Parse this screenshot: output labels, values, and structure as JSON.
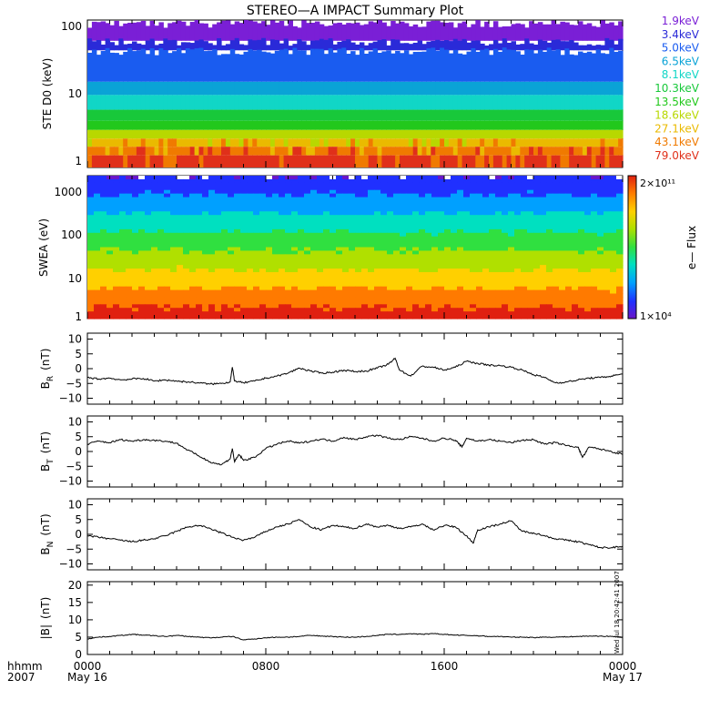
{
  "title": "STEREO—A IMPACT Summary Plot",
  "stamp": "Wed Jul 18 20:42:41 2007",
  "colors": {
    "ste_channels": [
      "#7a1fd6",
      "#2a2ad8",
      "#1a5cf0",
      "#0aa3d6",
      "#11d6c6",
      "#18c83a",
      "#22c81c",
      "#b8d800",
      "#eaba00",
      "#f07a00",
      "#e0301a"
    ],
    "swea_scale": [
      "#6a16c8",
      "#2030ff",
      "#00a0ff",
      "#00e0c0",
      "#30e040",
      "#b0e000",
      "#ffd000",
      "#ff7a00",
      "#e02010"
    ]
  },
  "x_axis": {
    "hhmm_label": "hhmm",
    "year_label": "2007",
    "ticks": [
      "0000",
      "0800",
      "1600",
      "0000"
    ],
    "dates": [
      "May 16",
      "",
      "",
      "May 17"
    ],
    "range_hours": [
      0,
      24
    ]
  },
  "chart_data": [
    {
      "type": "heatmap",
      "panel": "ste",
      "ylabel": "STE D0 (keV)",
      "ylog": true,
      "ylim": [
        0.8,
        110
      ],
      "yticks": [
        "1",
        "10",
        "100"
      ],
      "channels": [
        "1.9keV",
        "3.4keV",
        "5.0keV",
        "6.5keV",
        "8.1keV",
        "10.3keV",
        "13.5keV",
        "18.6keV",
        "27.1keV",
        "43.1keV",
        "79.0keV"
      ]
    },
    {
      "type": "heatmap",
      "panel": "swea",
      "ylabel": "SWEA (eV)",
      "ylog": true,
      "ylim": [
        0.8,
        2200
      ],
      "yticks": [
        "1",
        "10",
        "100",
        "1000"
      ],
      "colorbar": {
        "label": "e— Flux",
        "max": "2×10¹¹",
        "min": "1×10⁴"
      }
    },
    {
      "type": "line",
      "panel": "br",
      "ylabel_main": "B",
      "ylabel_sub": "R",
      "ylabel_unit": "(nT)",
      "ylim": [
        -12,
        12
      ],
      "yticks": [
        "10",
        "5",
        "0",
        "−5",
        "−10"
      ],
      "x": [
        0,
        0.5,
        1,
        1.5,
        2,
        2.5,
        3,
        3.5,
        4,
        4.5,
        5,
        5.5,
        6,
        6.4,
        6.5,
        6.6,
        7,
        7.5,
        8,
        8.5,
        9,
        9.5,
        10,
        10.5,
        11,
        11.5,
        12,
        12.5,
        13,
        13.5,
        13.8,
        14,
        14.5,
        15,
        15.5,
        16,
        16.5,
        17,
        17.5,
        18,
        18.5,
        19,
        19.5,
        20,
        20.5,
        21,
        21.5,
        22,
        22.5,
        23,
        23.5,
        24
      ],
      "y": [
        -3,
        -3.5,
        -3.2,
        -3.8,
        -3.5,
        -3.3,
        -4.2,
        -3.8,
        -4.2,
        -4.5,
        -4.8,
        -5.2,
        -5.0,
        -4.5,
        0.5,
        -4.2,
        -4.8,
        -4.2,
        -3.2,
        -2.5,
        -1.5,
        0.2,
        -0.8,
        -1.5,
        -1.2,
        -0.5,
        -1.0,
        -0.8,
        0.2,
        1.5,
        3.5,
        -0.5,
        -2.5,
        0.8,
        0.5,
        -0.5,
        0.5,
        2.5,
        1.8,
        1.2,
        1.0,
        0.5,
        -0.5,
        -2.0,
        -3.0,
        -4.8,
        -4.5,
        -3.8,
        -3.2,
        -3.0,
        -2.5,
        -1.8
      ]
    },
    {
      "type": "line",
      "panel": "bt",
      "ylabel_main": "B",
      "ylabel_sub": "T",
      "ylabel_unit": "(nT)",
      "ylim": [
        -12,
        12
      ],
      "yticks": [
        "10",
        "5",
        "0",
        "−5",
        "−10"
      ],
      "x": [
        0,
        0.5,
        1,
        1.5,
        2,
        2.5,
        3,
        3.5,
        4,
        4.5,
        5,
        5.5,
        6,
        6.4,
        6.5,
        6.6,
        6.8,
        7,
        7.5,
        8,
        8.5,
        9,
        9.5,
        10,
        10.5,
        11,
        11.5,
        12,
        12.5,
        13,
        13.5,
        14,
        14.5,
        15,
        15.5,
        16,
        16.5,
        16.8,
        17,
        17.5,
        18,
        18.5,
        19,
        19.5,
        20,
        20.5,
        21,
        21.5,
        22,
        22.2,
        22.5,
        23,
        23.5,
        24
      ],
      "y": [
        2.5,
        3.5,
        3.0,
        4.0,
        3.5,
        4.0,
        3.8,
        3.5,
        2.8,
        0.5,
        -1.5,
        -3.5,
        -4.5,
        -2.5,
        1.0,
        -3.5,
        -1.0,
        -3.0,
        -2.0,
        1.0,
        2.5,
        3.5,
        2.8,
        3.5,
        4.2,
        3.5,
        4.8,
        4.0,
        5.0,
        5.5,
        4.5,
        4.0,
        5.0,
        4.5,
        3.5,
        4.5,
        3.8,
        1.5,
        4.5,
        3.5,
        4.0,
        3.5,
        3.0,
        3.8,
        4.0,
        2.5,
        3.0,
        2.0,
        1.5,
        -2.0,
        1.5,
        0.8,
        0.0,
        -1.0
      ]
    },
    {
      "type": "line",
      "panel": "bn",
      "ylabel_main": "B",
      "ylabel_sub": "N",
      "ylabel_unit": "(nT)",
      "ylim": [
        -12,
        12
      ],
      "yticks": [
        "10",
        "5",
        "0",
        "−5",
        "−10"
      ],
      "x": [
        0,
        0.5,
        1,
        1.5,
        2,
        2.5,
        3,
        3.5,
        4,
        4.5,
        5,
        5.5,
        6,
        6.5,
        7,
        7.5,
        8,
        8.5,
        9,
        9.5,
        10,
        10.5,
        11,
        11.5,
        12,
        12.5,
        13,
        13.5,
        14,
        14.5,
        15,
        15.5,
        16,
        16.5,
        17,
        17.3,
        17.5,
        18,
        18.5,
        19,
        19.5,
        20,
        20.5,
        21,
        21.5,
        22,
        22.5,
        23,
        23.5,
        24
      ],
      "y": [
        -0.5,
        -1.0,
        -1.5,
        -2.0,
        -2.5,
        -2.0,
        -1.5,
        -0.5,
        1.0,
        2.5,
        3.0,
        2.0,
        0.5,
        -1.0,
        -2.0,
        -1.0,
        1.0,
        2.5,
        3.5,
        5.0,
        2.5,
        1.5,
        3.0,
        2.5,
        2.0,
        3.5,
        2.5,
        3.0,
        2.0,
        2.5,
        3.5,
        1.5,
        3.0,
        2.5,
        -0.5,
        -3.0,
        1.5,
        2.5,
        3.5,
        4.5,
        1.0,
        0.5,
        -0.5,
        -1.5,
        -2.0,
        -2.5,
        -3.5,
        -4.5,
        -4.5,
        -4.0
      ]
    },
    {
      "type": "line",
      "panel": "bmag",
      "ylabel_main": "|B|",
      "ylabel_sub": "",
      "ylabel_unit": "(nT)",
      "ylim": [
        0,
        21
      ],
      "yticks": [
        "20",
        "15",
        "10",
        "5",
        "0"
      ],
      "x": [
        0,
        0.5,
        1,
        1.5,
        2,
        2.5,
        3,
        3.5,
        4,
        4.5,
        5,
        5.5,
        6,
        6.5,
        7,
        7.5,
        8,
        8.5,
        9,
        9.5,
        10,
        10.5,
        11,
        11.5,
        12,
        12.5,
        13,
        13.5,
        14,
        14.5,
        15,
        15.5,
        16,
        16.5,
        17,
        17.5,
        18,
        18.5,
        19,
        19.5,
        20,
        20.5,
        21,
        21.5,
        22,
        22.5,
        23,
        23.5,
        24
      ],
      "y": [
        4.5,
        5.0,
        5.2,
        5.5,
        5.8,
        5.6,
        5.4,
        5.2,
        5.5,
        5.2,
        5.0,
        4.8,
        5.0,
        5.2,
        4.2,
        4.5,
        4.8,
        5.0,
        5.0,
        5.2,
        5.5,
        5.3,
        5.2,
        5.0,
        5.0,
        5.2,
        5.5,
        5.8,
        5.8,
        6.0,
        5.8,
        6.0,
        5.8,
        5.6,
        5.5,
        5.4,
        5.2,
        5.2,
        5.0,
        5.0,
        4.9,
        5.0,
        5.0,
        5.1,
        5.2,
        5.3,
        5.3,
        5.2,
        5.0
      ]
    }
  ]
}
